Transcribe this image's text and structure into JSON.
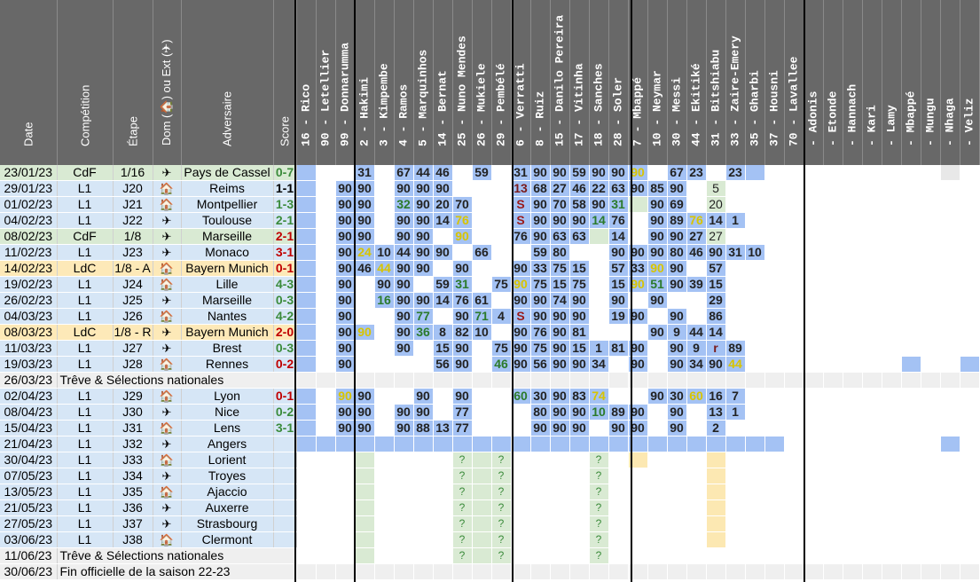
{
  "colors": {
    "header_bg": "#686868",
    "row_l1": "#d6e6f6",
    "row_cdf": "#d9ead3",
    "row_ldc": "#fde9b8",
    "row_break": "#efefef",
    "cell_blue": "#a4c2f4",
    "cell_green": "#d9ead3",
    "cell_purple": "#d9d2e9",
    "cell_yellow": "#fce8b2",
    "cell_gray": "#e8e8e8"
  },
  "headers": {
    "date": "Date",
    "competition": "Compétition",
    "etape": "Étape",
    "dom": "Dom (🏠) ou Ext (✈)",
    "adversaire": "Adversaire",
    "score": "Score"
  },
  "players": [
    "16 - Rico",
    "90 - Letellier",
    "99 - Donnarumma",
    "2 - Hakimi",
    "3 - Kimpembe",
    "4 - Ramos",
    "5 - Marquinhos",
    "14 - Bernat",
    "25 - Nuno Mendes",
    "26 - Mukiele",
    "29 - Pembélé",
    "6 - Verratti",
    "8 - Ruiz",
    "15 - Danilo Pereira",
    "17 - Vitinha",
    "18 - Sanches",
    "28 - Soler",
    "7 - Mbappé",
    "10 - Neymar",
    "30 - Messi",
    "44 - Ekitiké",
    "31 - Bitshiabu",
    "33 - Zaire-Emery",
    "35 - Gharbi",
    "37 - Housni",
    "70 - Lavallee",
    "- Adonis",
    "- Etonde",
    "- Hannach",
    "- Kari",
    "- Lamy",
    "- Mbappé",
    "- Mungu",
    "- Nhaga",
    "- Veliz"
  ],
  "matches": [
    {
      "date": "23/01/23",
      "comp": "CdF",
      "step": "1/16",
      "dom": "away",
      "opp": "Pays de Cassel",
      "score": "0-7",
      "res": "win",
      "type": "cdf",
      "cells": [
        "b:",
        "",
        "",
        "b:31",
        "",
        "b:67",
        "b:44",
        "b:46",
        "",
        "b:59",
        "",
        "b:31",
        "b:90",
        "b:90",
        "b:59",
        "b:90",
        "b:90",
        "by:90",
        "",
        "b:67",
        "b:23",
        "",
        "b:23",
        "b:",
        "",
        "",
        "",
        "",
        "",
        "",
        "",
        "",
        "",
        "x:",
        ""
      ]
    },
    {
      "date": "29/01/23",
      "comp": "L1",
      "step": "J20",
      "dom": "home",
      "opp": "Reims",
      "score": "1-1",
      "res": "draw",
      "type": "l1",
      "cells": [
        "b:",
        "",
        "b:90",
        "b:90",
        "",
        "b:90",
        "b:90",
        "b:90",
        "",
        "",
        "",
        "br:13",
        "b:68",
        "b:27",
        "b:46",
        "b:22",
        "b:63",
        "b:90",
        "b:85",
        "b:90",
        "",
        "g:5",
        "",
        "",
        "",
        "",
        "",
        "",
        "",
        "",
        "",
        "",
        "",
        "",
        ""
      ]
    },
    {
      "date": "01/02/23",
      "comp": "L1",
      "step": "J21",
      "dom": "home",
      "opp": "Montpellier",
      "score": "1-3",
      "res": "win",
      "type": "l1",
      "cells": [
        "b:",
        "",
        "b:90",
        "b:90",
        "",
        "bg:32",
        "b:90",
        "b:20",
        "b:70",
        "",
        "",
        "bs:S",
        "b:90",
        "b:70",
        "b:58",
        "b:90",
        "bg:31",
        "g:",
        "b:90",
        "b:69",
        "",
        "g:20",
        "",
        "",
        "",
        "",
        "",
        "",
        "",
        "",
        "",
        "",
        "",
        "",
        ""
      ]
    },
    {
      "date": "04/02/23",
      "comp": "L1",
      "step": "J22",
      "dom": "away",
      "opp": "Toulouse",
      "score": "2-1",
      "res": "win",
      "type": "l1",
      "cells": [
        "b:",
        "",
        "b:90",
        "b:90",
        "",
        "b:90",
        "b:90",
        "b:14",
        "by:76",
        "",
        "",
        "bs:S",
        "b:90",
        "b:90",
        "b:90",
        "bg:14",
        "b:76",
        "",
        "b:90",
        "b:89",
        "by:76",
        "b:14",
        "b:1",
        "",
        "",
        "",
        "",
        "",
        "",
        "",
        "",
        "",
        "",
        "",
        ""
      ]
    },
    {
      "date": "08/02/23",
      "comp": "CdF",
      "step": "1/8",
      "dom": "away",
      "opp": "Marseille",
      "score": "2-1",
      "res": "loss",
      "type": "cdf",
      "cells": [
        "b:",
        "",
        "b:90",
        "b:90",
        "",
        "b:90",
        "b:90",
        "",
        "by:90",
        "",
        "",
        "b:76",
        "b:90",
        "b:63",
        "b:63",
        "g:",
        "b:14",
        "",
        "b:90",
        "b:90",
        "b:27",
        "g:27",
        "",
        "",
        "",
        "",
        "",
        "",
        "",
        "",
        "",
        "",
        "",
        "",
        ""
      ]
    },
    {
      "date": "11/02/23",
      "comp": "L1",
      "step": "J23",
      "dom": "away",
      "opp": "Monaco",
      "score": "3-1",
      "res": "loss",
      "type": "l1",
      "cells": [
        "b:",
        "",
        "b:90",
        "by:24",
        "b:10",
        "b:44",
        "b:90",
        "b:90",
        "",
        "b:66",
        "",
        "",
        "b:59",
        "b:80",
        "",
        "",
        "b:90",
        "b:90",
        "b:90",
        "b:80",
        "b:46",
        "b:90",
        "b:31",
        "b:10",
        "",
        "",
        "",
        "",
        "",
        "",
        "",
        "",
        "",
        "",
        ""
      ]
    },
    {
      "date": "14/02/23",
      "comp": "LdC",
      "step": "1/8 - A",
      "dom": "home",
      "opp": "Bayern Munich",
      "score": "0-1",
      "res": "loss",
      "type": "ldc",
      "cells": [
        "b:",
        "",
        "b:90",
        "b:46",
        "by:44",
        "b:90",
        "b:90",
        "",
        "b:90",
        "",
        "",
        "b:90",
        "b:33",
        "b:75",
        "b:15",
        "",
        "b:57",
        "b:33",
        "by:90",
        "b:90",
        "",
        "b:57",
        "",
        "",
        "",
        "",
        "",
        "",
        "",
        "",
        "",
        "",
        "",
        "",
        ""
      ]
    },
    {
      "date": "19/02/23",
      "comp": "L1",
      "step": "J24",
      "dom": "home",
      "opp": "Lille",
      "score": "4-3",
      "res": "win",
      "type": "l1",
      "cells": [
        "b:",
        "",
        "b:90",
        "",
        "b:90",
        "b:90",
        "",
        "b:59",
        "bg:31",
        "",
        "b:75",
        "by:90",
        "b:75",
        "b:15",
        "b:75",
        "",
        "b:15",
        "by:90",
        "bg:51",
        "b:90",
        "b:39",
        "b:15",
        "",
        "",
        "",
        "",
        "",
        "",
        "",
        "",
        "",
        "",
        "",
        "",
        ""
      ]
    },
    {
      "date": "26/02/23",
      "comp": "L1",
      "step": "J25",
      "dom": "away",
      "opp": "Marseille",
      "score": "0-3",
      "res": "win",
      "type": "l1",
      "cells": [
        "b:",
        "",
        "b:90",
        "",
        "bg:16",
        "b:90",
        "b:90",
        "b:14",
        "b:76",
        "b:61",
        "",
        "b:90",
        "b:90",
        "b:74",
        "b:90",
        "",
        "b:90",
        "",
        "b:90",
        "",
        "",
        "b:29",
        "",
        "",
        "",
        "",
        "",
        "",
        "",
        "",
        "",
        "",
        "",
        "",
        ""
      ]
    },
    {
      "date": "04/03/23",
      "comp": "L1",
      "step": "J26",
      "dom": "home",
      "opp": "Nantes",
      "score": "4-2",
      "res": "win",
      "type": "l1",
      "cells": [
        "b:",
        "",
        "b:90",
        "",
        "",
        "b:90",
        "bg:77",
        "",
        "b:90",
        "bg:71",
        "b:4",
        "bs:S",
        "b:90",
        "b:90",
        "b:90",
        "",
        "b:19",
        "b:90",
        "",
        "b:90",
        "",
        "b:86",
        "",
        "",
        "",
        "",
        "",
        "",
        "",
        "",
        "",
        "",
        "",
        "",
        ""
      ]
    },
    {
      "date": "08/03/23",
      "comp": "LdC",
      "step": "1/8 - R",
      "dom": "away",
      "opp": "Bayern Munich",
      "score": "2-0",
      "res": "loss",
      "type": "ldc",
      "cells": [
        "b:",
        "",
        "b:90",
        "by:90",
        "",
        "b:90",
        "bg:36",
        "b:8",
        "b:82",
        "b:10",
        "",
        "b:90",
        "b:76",
        "b:90",
        "b:81",
        "",
        "",
        "",
        "b:90",
        "b:9",
        "b:44",
        "b:14",
        "",
        "",
        "",
        "",
        "",
        "",
        "",
        "",
        "",
        "",
        "",
        "",
        ""
      ]
    },
    {
      "date": "11/03/23",
      "comp": "L1",
      "step": "J27",
      "dom": "away",
      "opp": "Brest",
      "score": "0-3",
      "res": "win",
      "type": "l1",
      "cells": [
        "b:",
        "",
        "b:90",
        "",
        "",
        "b:90",
        "",
        "b:15",
        "b:90",
        "",
        "b:75",
        "b:90",
        "b:75",
        "b:90",
        "b:15",
        "b:1",
        "b:81",
        "b:90",
        "",
        "b:90",
        "b:9",
        "br:r",
        "b:89",
        "",
        "",
        "",
        "",
        "",
        "",
        "",
        "",
        "",
        "",
        "",
        ""
      ]
    },
    {
      "date": "19/03/23",
      "comp": "L1",
      "step": "J28",
      "dom": "home",
      "opp": "Rennes",
      "score": "0-2",
      "res": "loss",
      "type": "l1",
      "cells": [
        "b:",
        "",
        "b:90",
        "",
        "",
        "",
        "",
        "b:56",
        "b:90",
        "",
        "bg:46",
        "b:90",
        "b:56",
        "b:90",
        "b:90",
        "b:34",
        "",
        "b:90",
        "",
        "b:90",
        "b:34",
        "b:90",
        "by:44",
        "",
        "",
        "",
        "",
        "",
        "",
        "",
        "",
        "b:",
        "",
        "",
        "b:"
      ]
    },
    {
      "date": "26/03/23",
      "full": "Trêve & Sélections nationales",
      "type": "break",
      "cells": []
    },
    {
      "date": "02/04/23",
      "comp": "L1",
      "step": "J29",
      "dom": "home",
      "opp": "Lyon",
      "score": "0-1",
      "res": "loss",
      "type": "l1",
      "cells": [
        "b:",
        "",
        "by:90",
        "b:90",
        "",
        "",
        "b:90",
        "",
        "b:90",
        "",
        "",
        "bg:60",
        "b:30",
        "b:90",
        "b:83",
        "by:74",
        "",
        "",
        "b:90",
        "b:30",
        "by:60",
        "b:16",
        "b:7",
        "",
        "",
        "",
        "",
        "",
        "",
        "",
        "",
        "",
        "",
        "",
        ""
      ]
    },
    {
      "date": "08/04/23",
      "comp": "L1",
      "step": "J30",
      "dom": "away",
      "opp": "Nice",
      "score": "0-2",
      "res": "win",
      "type": "l1",
      "cells": [
        "b:",
        "",
        "b:90",
        "b:90",
        "",
        "b:90",
        "b:90",
        "",
        "b:77",
        "",
        "",
        "",
        "b:80",
        "b:90",
        "b:90",
        "bg:10",
        "b:89",
        "b:90",
        "",
        "b:90",
        "",
        "b:13",
        "b:1",
        "",
        "",
        "",
        "",
        "",
        "",
        "",
        "",
        "",
        "",
        "",
        ""
      ]
    },
    {
      "date": "15/04/23",
      "comp": "L1",
      "step": "J31",
      "dom": "home",
      "opp": "Lens",
      "score": "3-1",
      "res": "win",
      "type": "l1",
      "cells": [
        "b:",
        "",
        "b:90",
        "b:90",
        "",
        "b:90",
        "b:88",
        "b:13",
        "b:77",
        "",
        "",
        "",
        "b:90",
        "b:90",
        "b:90",
        "",
        "b:90",
        "b:90",
        "",
        "b:90",
        "",
        "b:2",
        "",
        "",
        "",
        "",
        "",
        "",
        "",
        "",
        "",
        "",
        "",
        "",
        ""
      ]
    },
    {
      "date": "21/04/23",
      "comp": "L1",
      "step": "J32",
      "dom": "away",
      "opp": "Angers",
      "score": "",
      "res": "draw",
      "type": "l1",
      "cells": [
        "b:",
        "b:",
        "b:",
        "b:",
        "b:",
        "b:",
        "b:",
        "b:",
        "b:",
        "b:",
        "b:",
        "b:",
        "b:",
        "b:",
        "b:",
        "b:",
        "b:",
        "b:",
        "b:",
        "b:",
        "b:",
        "b:",
        "b:",
        "b:",
        "b:",
        "",
        "",
        "",
        "",
        "",
        "",
        "",
        "",
        "b:",
        ""
      ]
    },
    {
      "date": "30/04/23",
      "comp": "L1",
      "step": "J33",
      "dom": "home",
      "opp": "Lorient",
      "score": "",
      "res": "draw",
      "type": "l1",
      "cells": [
        "",
        "",
        "",
        "g:",
        "",
        "",
        "",
        "",
        "q:?",
        "g:",
        "q:?",
        "",
        "",
        "",
        "",
        "q:?",
        "",
        "yl:",
        "",
        "",
        "",
        "yl:",
        "",
        "",
        "",
        "",
        "",
        "",
        "",
        "",
        "",
        "",
        "",
        "",
        ""
      ]
    },
    {
      "date": "07/05/23",
      "comp": "L1",
      "step": "J34",
      "dom": "away",
      "opp": "Troyes",
      "score": "",
      "res": "draw",
      "type": "l1",
      "cells": [
        "",
        "",
        "",
        "g:",
        "",
        "",
        "",
        "",
        "q:?",
        "g:",
        "q:?",
        "",
        "",
        "",
        "",
        "q:?",
        "",
        "",
        "",
        "",
        "",
        "yl:",
        "",
        "",
        "",
        "",
        "",
        "",
        "",
        "",
        "",
        "",
        "",
        "",
        ""
      ]
    },
    {
      "date": "13/05/23",
      "comp": "L1",
      "step": "J35",
      "dom": "home",
      "opp": "Ajaccio",
      "score": "",
      "res": "draw",
      "type": "l1",
      "cells": [
        "",
        "",
        "",
        "g:",
        "",
        "",
        "",
        "",
        "q:?",
        "g:",
        "q:?",
        "",
        "",
        "",
        "",
        "q:?",
        "",
        "",
        "",
        "",
        "",
        "yl:",
        "",
        "",
        "",
        "",
        "",
        "",
        "",
        "",
        "",
        "",
        "",
        "",
        ""
      ]
    },
    {
      "date": "21/05/23",
      "comp": "L1",
      "step": "J36",
      "dom": "away",
      "opp": "Auxerre",
      "score": "",
      "res": "draw",
      "type": "l1",
      "cells": [
        "",
        "",
        "",
        "g:",
        "",
        "",
        "",
        "",
        "q:?",
        "g:",
        "q:?",
        "",
        "",
        "",
        "",
        "q:?",
        "",
        "",
        "",
        "",
        "",
        "yl:",
        "",
        "",
        "",
        "",
        "",
        "",
        "",
        "",
        "",
        "",
        "",
        "",
        ""
      ]
    },
    {
      "date": "27/05/23",
      "comp": "L1",
      "step": "J37",
      "dom": "away",
      "opp": "Strasbourg",
      "score": "",
      "res": "draw",
      "type": "l1",
      "cells": [
        "",
        "",
        "",
        "g:",
        "",
        "",
        "",
        "",
        "q:?",
        "g:",
        "q:?",
        "",
        "",
        "",
        "",
        "q:?",
        "",
        "",
        "",
        "",
        "",
        "yl:",
        "",
        "",
        "",
        "",
        "",
        "",
        "",
        "",
        "",
        "",
        "",
        "",
        ""
      ]
    },
    {
      "date": "03/06/23",
      "comp": "L1",
      "step": "J38",
      "dom": "home",
      "opp": "Clermont",
      "score": "",
      "res": "draw",
      "type": "l1",
      "cells": [
        "",
        "",
        "",
        "g:",
        "",
        "",
        "",
        "",
        "q:?",
        "g:",
        "q:?",
        "",
        "",
        "",
        "",
        "q:?",
        "",
        "",
        "",
        "",
        "",
        "yl:",
        "",
        "",
        "",
        "",
        "",
        "",
        "",
        "",
        "",
        "",
        "",
        "",
        ""
      ]
    },
    {
      "date": "11/06/23",
      "full": "Trêve & Sélections nationales",
      "type": "break2",
      "cells": [
        "",
        "",
        "",
        "g:",
        "",
        "",
        "",
        "",
        "q:?",
        "g:",
        "q:?",
        "",
        "",
        "",
        "",
        "q:?",
        "",
        "",
        "",
        "",
        "",
        "",
        "",
        "",
        "",
        "",
        "",
        "",
        "",
        "",
        "",
        "",
        "",
        "",
        ""
      ]
    },
    {
      "date": "30/06/23",
      "full": "Fin officielle de la saison 22-23",
      "type": "break",
      "cells": []
    }
  ]
}
